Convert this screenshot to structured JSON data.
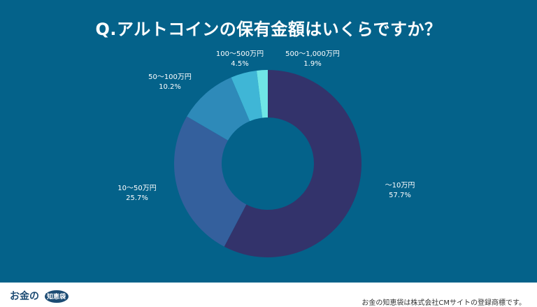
{
  "colors": {
    "background": "#04628a",
    "footer": "#ffffff",
    "text": "#ffffff"
  },
  "chart_data": {
    "type": "pie",
    "variant": "donut",
    "title": "Q.アルトコインの保有金額はいくらですか？",
    "slices": [
      {
        "label": "〜10万円",
        "value": 57.7,
        "display": "57.7%",
        "color": "#33336b"
      },
      {
        "label": "10〜50万円",
        "value": 25.7,
        "display": "25.7%",
        "color": "#34609d"
      },
      {
        "label": "50〜100万円",
        "value": 10.2,
        "display": "10.2%",
        "color": "#2e8ab9"
      },
      {
        "label": "100〜500万円",
        "value": 4.5,
        "display": "4.5%",
        "color": "#3fb6d6"
      },
      {
        "label": "500〜1,000万円",
        "value": 1.9,
        "display": "1.9%",
        "color": "#6fe6e6"
      }
    ],
    "start": "12 o'clock",
    "direction": "clockwise",
    "legend": "none"
  },
  "footer": {
    "logo_text": "お金の",
    "logo_badge": "知恵袋",
    "trademark": "お金の知恵袋は株式会社CMサイトの登録商標です。"
  }
}
